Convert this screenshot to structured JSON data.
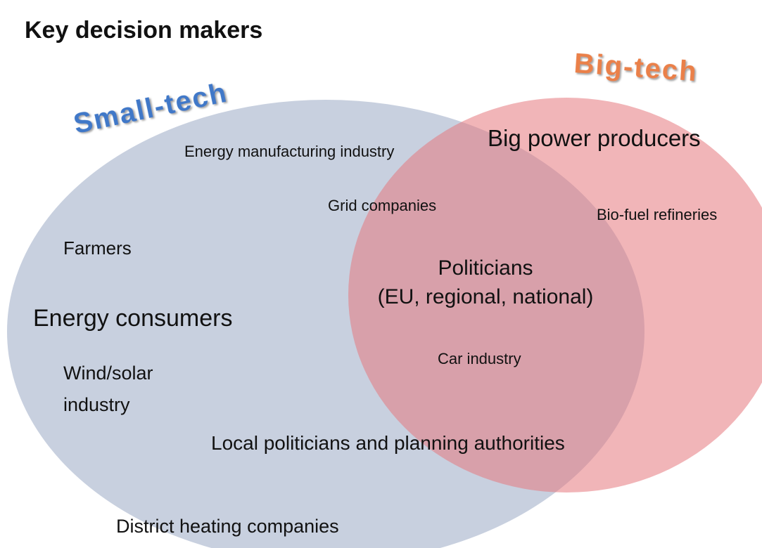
{
  "title": "Key decision makers",
  "sets": [
    {
      "label": "Small-tech"
    },
    {
      "label": "Big-tech"
    }
  ],
  "items": [
    {
      "lines": [
        "Energy manufacturing industry"
      ]
    },
    {
      "lines": [
        "Big power producers"
      ]
    },
    {
      "lines": [
        "Grid companies"
      ]
    },
    {
      "lines": [
        "Bio-fuel refineries"
      ]
    },
    {
      "lines": [
        "Farmers"
      ]
    },
    {
      "lines": [
        "Politicians",
        "(EU, regional, national)"
      ]
    },
    {
      "lines": [
        "Energy consumers"
      ]
    },
    {
      "lines": [
        "Car industry"
      ]
    },
    {
      "lines": [
        "Wind/solar",
        "industry"
      ]
    },
    {
      "lines": [
        "Local politicians and planning authorities"
      ]
    },
    {
      "lines": [
        "District heating companies"
      ]
    }
  ]
}
